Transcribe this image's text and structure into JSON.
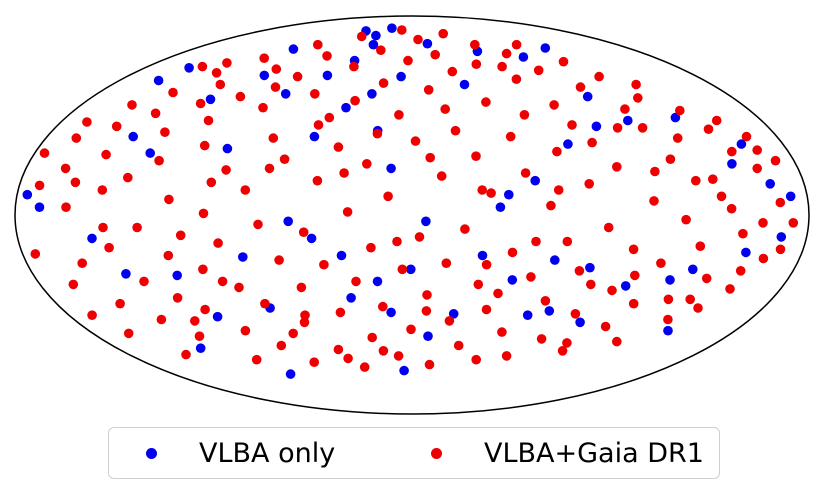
{
  "chart_data": {
    "type": "scatter",
    "projection": "mollweide",
    "legend_placement": "bottom-center",
    "grid": false,
    "series": [
      {
        "name": "VLBA only",
        "color": "#0000ee",
        "points": [
          [
            -3.06,
            0.13
          ],
          [
            -2.95,
            0.05
          ],
          [
            -2.72,
            0.91
          ],
          [
            -2.62,
            1.01
          ],
          [
            -2.55,
            -0.15
          ],
          [
            -2.4,
            0.51
          ],
          [
            -2.37,
            -0.38
          ],
          [
            -2.18,
            0.4
          ],
          [
            -1.96,
            0.77
          ],
          [
            -1.95,
            -0.39
          ],
          [
            -1.79,
            -0.67
          ],
          [
            -1.7,
            1.17
          ],
          [
            -1.64,
            0.95
          ],
          [
            -1.6,
            -1.11
          ],
          [
            -1.55,
            0.43
          ],
          [
            -1.37,
            -0.27
          ],
          [
            -1.27,
            -0.61
          ],
          [
            -1.26,
            0.81
          ],
          [
            -0.98,
            -0.04
          ],
          [
            -0.94,
            0.95
          ],
          [
            -0.96,
            1.35
          ],
          [
            -0.8,
            -0.15
          ],
          [
            -0.72,
            1.07
          ],
          [
            -0.66,
            1.3
          ],
          [
            -0.62,
            0.71
          ],
          [
            -0.59,
            1.21
          ],
          [
            -0.57,
            -0.26
          ],
          [
            -0.53,
            -0.54
          ],
          [
            -0.46,
            1.38
          ],
          [
            -0.4,
            0.81
          ],
          [
            -0.3,
            0.55
          ],
          [
            -0.29,
            -0.43
          ],
          [
            -0.19,
            -0.64
          ],
          [
            -0.17,
            0.3
          ],
          [
            -0.12,
            0.94
          ],
          [
            -0.1,
            -1.08
          ],
          [
            -0.01,
            -0.35
          ],
          [
            0.11,
            -0.04
          ],
          [
            0.16,
            -0.81
          ],
          [
            0.24,
            1.22
          ],
          [
            0.38,
            -0.65
          ],
          [
            0.55,
            0.88
          ],
          [
            0.57,
            -0.26
          ],
          [
            0.7,
            0.05
          ],
          [
            0.77,
            0.13
          ],
          [
            0.84,
            -0.42
          ],
          [
            0.91,
            1.15
          ],
          [
            0.99,
            0.22
          ],
          [
            1.06,
            -0.66
          ],
          [
            1.16,
            -0.29
          ],
          [
            1.24,
            -0.63
          ],
          [
            1.32,
            0.46
          ],
          [
            1.45,
            1.1
          ],
          [
            1.46,
            -0.34
          ],
          [
            1.58,
            -0.71
          ],
          [
            1.73,
            0.79
          ],
          [
            1.81,
            -0.46
          ],
          [
            1.94,
            0.62
          ],
          [
            1.94,
            1.18
          ],
          [
            2.16,
            -0.42
          ],
          [
            2.31,
            -0.35
          ],
          [
            2.39,
            0.64
          ],
          [
            2.49,
            -0.77
          ],
          [
            2.62,
            0.33
          ],
          [
            2.69,
            -0.24
          ],
          [
            2.79,
            0.46
          ],
          [
            2.87,
            0.2
          ],
          [
            2.94,
            -0.14
          ],
          [
            3.01,
            0.12
          ],
          [
            -2.25,
            -0.9
          ],
          [
            -0.84,
            0.51
          ],
          [
            1.63,
            0.58
          ]
        ]
      },
      {
        "name": "VLBA+Gaia DR1",
        "color": "#ee0000",
        "points": [
          [
            -3.06,
            0.4
          ],
          [
            -3.04,
            -0.25
          ],
          [
            -2.98,
            0.19
          ],
          [
            -2.91,
            0.61
          ],
          [
            -2.86,
            -0.45
          ],
          [
            -2.82,
            0.3
          ],
          [
            -2.79,
            -0.79
          ],
          [
            -2.74,
            0.05
          ],
          [
            -2.69,
            -0.31
          ],
          [
            -2.66,
            0.73
          ],
          [
            -2.61,
            0.58
          ],
          [
            -2.58,
            -0.58
          ],
          [
            -2.54,
            0.39
          ],
          [
            -2.51,
            -0.95
          ],
          [
            -2.47,
            0.16
          ],
          [
            -2.43,
            -0.21
          ],
          [
            -2.4,
            0.82
          ],
          [
            -2.36,
            0.67
          ],
          [
            -2.33,
            -0.69
          ],
          [
            -2.29,
            0.24
          ],
          [
            -2.25,
            -0.43
          ],
          [
            -2.21,
            0.97
          ],
          [
            -2.18,
            -0.08
          ],
          [
            -2.15,
            0.54
          ],
          [
            -2.12,
            -0.81
          ],
          [
            -2.08,
            0.35
          ],
          [
            -2.04,
            -0.54
          ],
          [
            -2.01,
            0.88
          ],
          [
            -1.97,
            -0.26
          ],
          [
            -1.93,
            0.1
          ],
          [
            -1.9,
            1.09
          ],
          [
            -1.86,
            -0.62
          ],
          [
            -1.83,
            0.62
          ],
          [
            -1.79,
            -0.99
          ],
          [
            -1.75,
            0.45
          ],
          [
            -1.72,
            -0.35
          ],
          [
            -1.69,
            0.79
          ],
          [
            -1.65,
            0.01
          ],
          [
            -1.62,
            -0.77
          ],
          [
            -1.58,
            1.0
          ],
          [
            -1.55,
            -0.18
          ],
          [
            -1.51,
            0.29
          ],
          [
            -1.47,
            -0.47
          ],
          [
            -1.44,
            1.21
          ],
          [
            -1.4,
            0.71
          ],
          [
            -1.37,
            -0.88
          ],
          [
            -1.33,
            0.16
          ],
          [
            -1.3,
            -0.58
          ],
          [
            -1.26,
            0.94
          ],
          [
            -1.22,
            -0.06
          ],
          [
            -1.19,
            0.5
          ],
          [
            -1.15,
            -1.01
          ],
          [
            -1.12,
            1.11
          ],
          [
            -1.08,
            -0.29
          ],
          [
            -1.05,
            0.36
          ],
          [
            -1.01,
            -0.71
          ],
          [
            -0.97,
            0.81
          ],
          [
            -0.94,
            -0.47
          ],
          [
            -0.9,
            1.29
          ],
          [
            -0.86,
            -0.11
          ],
          [
            -0.83,
            0.59
          ],
          [
            -0.79,
            -0.91
          ],
          [
            -0.76,
            0.22
          ],
          [
            -0.72,
            -0.32
          ],
          [
            -0.69,
            1.02
          ],
          [
            -0.65,
            -0.64
          ],
          [
            -0.62,
            0.44
          ],
          [
            -0.58,
            -1.05
          ],
          [
            -0.55,
            0.76
          ],
          [
            -0.51,
            0.02
          ],
          [
            -0.47,
            -0.43
          ],
          [
            -0.44,
            1.16
          ],
          [
            -0.4,
            -0.82
          ],
          [
            -0.37,
            0.33
          ],
          [
            -0.33,
            -0.21
          ],
          [
            -0.3,
            0.89
          ],
          [
            -0.26,
            -0.6
          ],
          [
            -0.22,
            1.36
          ],
          [
            -0.19,
            0.12
          ],
          [
            -0.15,
            -0.96
          ],
          [
            -0.12,
            0.66
          ],
          [
            -0.08,
            -0.35
          ],
          [
            -0.05,
            1.07
          ],
          [
            -0.01,
            -0.76
          ],
          [
            0.03,
            0.48
          ],
          [
            0.06,
            -0.14
          ],
          [
            0.1,
            1.26
          ],
          [
            0.13,
            -0.52
          ],
          [
            0.17,
            0.84
          ],
          [
            0.21,
            -1.03
          ],
          [
            0.24,
            0.25
          ],
          [
            0.28,
            -0.31
          ],
          [
            0.31,
            1.12
          ],
          [
            0.35,
            -0.7
          ],
          [
            0.38,
            0.55
          ],
          [
            0.42,
            -0.09
          ],
          [
            0.46,
            0.98
          ],
          [
            0.49,
            -0.88
          ],
          [
            0.53,
            0.38
          ],
          [
            0.56,
            -0.45
          ],
          [
            0.6,
            1.32
          ],
          [
            0.63,
            0.14
          ],
          [
            0.67,
            -0.62
          ],
          [
            0.71,
            0.75
          ],
          [
            0.74,
            -0.99
          ],
          [
            0.78,
            1.04
          ],
          [
            0.81,
            -0.24
          ],
          [
            0.85,
            0.51
          ],
          [
            0.88,
            -0.78
          ],
          [
            0.92,
            0.27
          ],
          [
            0.96,
            1.21
          ],
          [
            0.99,
            -0.4
          ],
          [
            1.03,
            0.66
          ],
          [
            1.06,
            -0.96
          ],
          [
            1.1,
            0.06
          ],
          [
            1.13,
            0.92
          ],
          [
            1.17,
            -0.56
          ],
          [
            1.21,
            0.41
          ],
          [
            1.24,
            -0.17
          ],
          [
            1.28,
            1.13
          ],
          [
            1.31,
            -0.83
          ],
          [
            1.35,
            0.73
          ],
          [
            1.38,
            -0.36
          ],
          [
            1.42,
            0.2
          ],
          [
            1.46,
            0.99
          ],
          [
            1.49,
            -0.65
          ],
          [
            1.53,
            0.47
          ],
          [
            1.56,
            -0.08
          ],
          [
            1.6,
            1.21
          ],
          [
            1.63,
            -0.92
          ],
          [
            1.67,
            0.31
          ],
          [
            1.71,
            -0.49
          ],
          [
            1.74,
            0.86
          ],
          [
            1.78,
            -0.22
          ],
          [
            1.81,
            0.57
          ],
          [
            1.85,
            -0.74
          ],
          [
            1.88,
            1.06
          ],
          [
            1.92,
            0.09
          ],
          [
            1.96,
            -0.58
          ],
          [
            1.99,
            0.7
          ],
          [
            2.03,
            -0.31
          ],
          [
            2.06,
            0.94
          ],
          [
            2.1,
            -0.85
          ],
          [
            2.13,
            0.36
          ],
          [
            2.17,
            -0.03
          ],
          [
            2.21,
            0.78
          ],
          [
            2.24,
            -0.55
          ],
          [
            2.28,
            0.5
          ],
          [
            2.31,
            -0.2
          ],
          [
            2.35,
            0.88
          ],
          [
            2.38,
            -0.69
          ],
          [
            2.42,
            0.23
          ],
          [
            2.46,
            -0.41
          ],
          [
            2.49,
            0.69
          ],
          [
            2.53,
            0.04
          ],
          [
            2.56,
            -0.61
          ],
          [
            2.6,
            0.56
          ],
          [
            2.63,
            -0.12
          ],
          [
            2.67,
            0.41
          ],
          [
            2.71,
            -0.36
          ],
          [
            2.74,
            0.62
          ],
          [
            2.78,
            -0.05
          ],
          [
            2.81,
            0.3
          ],
          [
            2.85,
            -0.28
          ],
          [
            2.88,
            0.51
          ],
          [
            2.92,
            0.08
          ],
          [
            2.96,
            -0.22
          ],
          [
            2.99,
            0.35
          ],
          [
            3.02,
            -0.05
          ],
          [
            -2.93,
            -0.66
          ],
          [
            -2.49,
            1.02
          ],
          [
            -2.03,
            -0.7
          ],
          [
            -1.61,
            0.21
          ],
          [
            -1.17,
            -0.79
          ],
          [
            -0.75,
            0.64
          ],
          [
            -0.31,
            -0.92
          ],
          [
            0.15,
            0.37
          ],
          [
            0.61,
            -0.32
          ],
          [
            1.07,
            1.02
          ],
          [
            1.51,
            -0.45
          ],
          [
            1.97,
            0.28
          ],
          [
            2.43,
            -0.55
          ],
          [
            2.89,
            0.42
          ],
          [
            -2.7,
            0.21
          ],
          [
            -2.27,
            1.05
          ],
          [
            -1.84,
            -0.13
          ],
          [
            -1.41,
            0.86
          ],
          [
            -0.98,
            -0.66
          ],
          [
            -0.55,
            0.27
          ],
          [
            -0.12,
            -0.17
          ],
          [
            0.31,
            0.7
          ],
          [
            0.74,
            -0.51
          ],
          [
            1.17,
            0.16
          ],
          [
            1.6,
            -0.86
          ],
          [
            2.03,
            0.57
          ],
          [
            2.46,
            0.12
          ],
          [
            -2.88,
            0.5
          ],
          [
            -2.45,
            -0.08
          ],
          [
            -2.02,
            0.74
          ],
          [
            -1.59,
            -0.43
          ],
          [
            -1.16,
            0.3
          ],
          [
            -0.73,
            -0.98
          ],
          [
            -0.3,
            0.53
          ],
          [
            0.13,
            -0.63
          ],
          [
            0.56,
            0.16
          ],
          [
            0.99,
            -0.17
          ],
          [
            1.42,
            0.59
          ],
          [
            1.85,
            -0.39
          ],
          [
            2.28,
            0.22
          ],
          [
            2.71,
            -0.48
          ]
        ]
      }
    ]
  }
}
